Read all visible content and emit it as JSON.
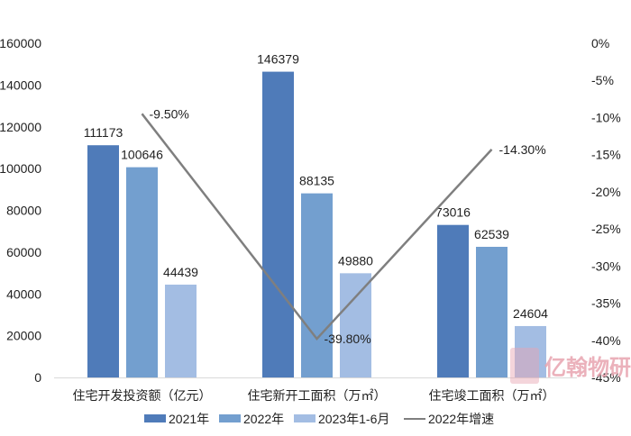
{
  "chart_data": {
    "type": "bar",
    "title": "",
    "xlabel": "",
    "ylabel": "",
    "ylim": [
      0,
      160000
    ],
    "y2lim": [
      -0.45,
      0
    ],
    "grid": false,
    "legend_position": "bottom",
    "categories": [
      "住宅开发投资额（亿元）",
      "住宅新开工面积（万㎡）",
      "住宅竣工面积（万㎡）"
    ],
    "series": [
      {
        "name": "2021年",
        "type": "bar",
        "axis": "left",
        "color": "#4f7bb9",
        "values": [
          111173,
          146379,
          73016
        ]
      },
      {
        "name": "2022年",
        "type": "bar",
        "axis": "left",
        "color": "#739fcf",
        "values": [
          100646,
          88135,
          62539
        ]
      },
      {
        "name": "2023年1-6月",
        "type": "bar",
        "axis": "left",
        "color": "#a3bde3",
        "values": [
          44439,
          49880,
          24604
        ]
      },
      {
        "name": "2022年增速",
        "type": "line",
        "axis": "right",
        "color": "#7f7f7f",
        "values": [
          -0.095,
          -0.398,
          -0.143
        ]
      }
    ],
    "data_labels": {
      "bars": [
        [
          "111173",
          "100646",
          "44439"
        ],
        [
          "146379",
          "88135",
          "49880"
        ],
        [
          "73016",
          "62539",
          "24604"
        ]
      ],
      "line": [
        "-9.50%",
        "-39.80%",
        "-14.30%"
      ]
    },
    "left_ticks": [
      "0",
      "20000",
      "40000",
      "60000",
      "80000",
      "100000",
      "120000",
      "140000",
      "160000"
    ],
    "right_ticks": [
      "0%",
      "-5%",
      "-10%",
      "-15%",
      "-20%",
      "-25%",
      "-30%",
      "-35%",
      "-40%",
      "-45%"
    ]
  },
  "watermark": "亿翰物研"
}
